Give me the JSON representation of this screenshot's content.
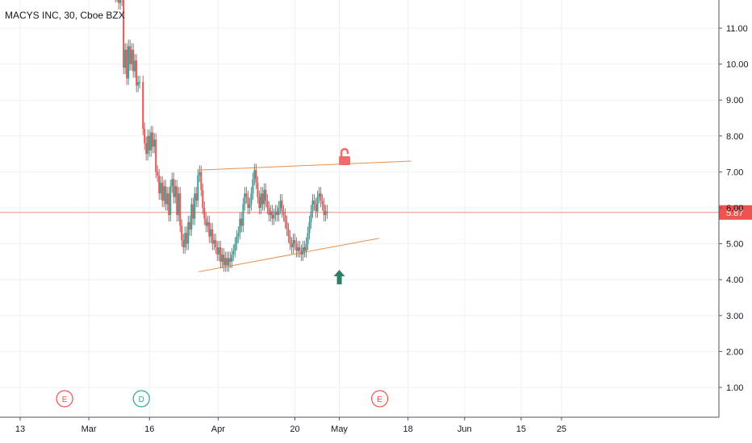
{
  "chart_data": {
    "type": "candlestick",
    "title": "MACYS INC, 30, Cboe BZX",
    "y_ticks": [
      "1.00",
      "2.00",
      "3.00",
      "4.00",
      "5.00",
      "6.00",
      "7.00",
      "8.00",
      "9.00",
      "10.00",
      "11.00"
    ],
    "ylim": [
      0.45,
      12.25
    ],
    "x_ticks": [
      {
        "label": "13",
        "t": 0
      },
      {
        "label": "Mar",
        "t": 17
      },
      {
        "label": "16",
        "t": 32
      },
      {
        "label": "Apr",
        "t": 49
      },
      {
        "label": "20",
        "t": 68
      },
      {
        "label": "May",
        "t": 79
      },
      {
        "label": "18",
        "t": 96
      },
      {
        "label": "Jun",
        "t": 110
      },
      {
        "label": "15",
        "t": 124
      },
      {
        "label": "25",
        "t": 134
      }
    ],
    "last_price": "5.87",
    "last_price_value": 5.87,
    "grid": true,
    "colors": {
      "up": "#26a69a",
      "down": "#ef5350",
      "trendline": "#e8904c",
      "price_line": "#f28b82",
      "earnings": "#ef5350",
      "dividend": "#26a69a",
      "arrow": "#2e7d66",
      "lock": "#f26b6b"
    },
    "trendlines": [
      {
        "name": "upper",
        "from": {
          "t": 44.2,
          "price": 7.05
        },
        "to": {
          "t": 96.8,
          "price": 7.3
        }
      },
      {
        "name": "lower",
        "from": {
          "t": 44.2,
          "price": 4.22
        },
        "to": {
          "t": 88.8,
          "price": 5.15
        }
      }
    ],
    "events": [
      {
        "label": "E",
        "t": 11,
        "kind": "earnings"
      },
      {
        "label": "D",
        "t": 30,
        "kind": "dividend"
      },
      {
        "label": "E",
        "t": 89,
        "kind": "earnings"
      }
    ],
    "markers": [
      {
        "kind": "up-arrow",
        "t": 79,
        "price": 4.05
      },
      {
        "kind": "unlock-icon",
        "t": 80.3,
        "price": 7.3
      }
    ],
    "price_path": [
      [
        23.2,
        12.2
      ],
      [
        23.6,
        11.9
      ],
      [
        24.0,
        12.0
      ],
      [
        24.4,
        11.7
      ],
      [
        24.8,
        12.1
      ],
      [
        25.2,
        11.8
      ],
      [
        25.6,
        9.9
      ],
      [
        26.0,
        10.4
      ],
      [
        26.4,
        9.6
      ],
      [
        26.8,
        10.5
      ],
      [
        27.2,
        10.0
      ],
      [
        27.6,
        10.4
      ],
      [
        28.0,
        9.8
      ],
      [
        28.4,
        10.1
      ],
      [
        28.8,
        9.4
      ],
      [
        29.2,
        9.5
      ],
      [
        29.6,
        9.5
      ],
      [
        30.4,
        8.2
      ],
      [
        30.8,
        7.8
      ],
      [
        31.2,
        7.5
      ],
      [
        31.6,
        8.0
      ],
      [
        32.0,
        7.6
      ],
      [
        32.4,
        8.1
      ],
      [
        32.8,
        7.7
      ],
      [
        33.2,
        7.9
      ],
      [
        33.6,
        7.0
      ],
      [
        34.0,
        6.9
      ],
      [
        34.4,
        6.4
      ],
      [
        34.8,
        6.7
      ],
      [
        35.2,
        6.2
      ],
      [
        35.6,
        6.6
      ],
      [
        36.0,
        6.1
      ],
      [
        36.4,
        6.4
      ],
      [
        36.8,
        5.8
      ],
      [
        37.2,
        6.6
      ],
      [
        37.6,
        6.8
      ],
      [
        38.0,
        6.3
      ],
      [
        38.4,
        6.6
      ],
      [
        38.8,
        5.8
      ],
      [
        39.2,
        6.4
      ],
      [
        39.6,
        5.5
      ],
      [
        40.0,
        5.1
      ],
      [
        40.4,
        4.9
      ],
      [
        40.8,
        5.3
      ],
      [
        41.2,
        5.0
      ],
      [
        41.6,
        5.6
      ],
      [
        42.0,
        5.4
      ],
      [
        42.4,
        6.1
      ],
      [
        42.8,
        5.7
      ],
      [
        43.2,
        6.4
      ],
      [
        43.6,
        6.2
      ],
      [
        44.0,
        6.9
      ],
      [
        44.4,
        7.0
      ],
      [
        44.8,
        6.5
      ],
      [
        45.2,
        6.0
      ],
      [
        45.6,
        5.7
      ],
      [
        46.0,
        5.5
      ],
      [
        46.4,
        5.6
      ],
      [
        46.8,
        5.2
      ],
      [
        47.2,
        5.4
      ],
      [
        47.6,
        5.0
      ],
      [
        48.0,
        5.1
      ],
      [
        48.4,
        4.9
      ],
      [
        48.8,
        4.7
      ],
      [
        49.2,
        4.9
      ],
      [
        49.6,
        4.5
      ],
      [
        50.0,
        4.7
      ],
      [
        50.4,
        4.4
      ],
      [
        50.8,
        4.6
      ],
      [
        51.2,
        4.4
      ],
      [
        51.6,
        4.6
      ],
      [
        52.0,
        4.5
      ],
      [
        52.4,
        4.7
      ],
      [
        52.8,
        4.8
      ],
      [
        53.2,
        5.0
      ],
      [
        53.6,
        5.2
      ],
      [
        54.0,
        5.3
      ],
      [
        54.4,
        5.7
      ],
      [
        54.8,
        5.5
      ],
      [
        55.2,
        6.1
      ],
      [
        55.6,
        6.4
      ],
      [
        56.0,
        6.3
      ],
      [
        56.4,
        6.0
      ],
      [
        56.8,
        6.1
      ],
      [
        57.2,
        6.4
      ],
      [
        57.6,
        6.8
      ],
      [
        58.0,
        7.05
      ],
      [
        58.4,
        6.7
      ],
      [
        58.8,
        6.3
      ],
      [
        59.2,
        6.0
      ],
      [
        59.6,
        6.4
      ],
      [
        60.0,
        6.1
      ],
      [
        60.4,
        6.5
      ],
      [
        60.8,
        6.2
      ],
      [
        61.2,
        6.0
      ],
      [
        61.6,
        5.8
      ],
      [
        62.0,
        5.9
      ],
      [
        62.4,
        5.7
      ],
      [
        62.8,
        5.8
      ],
      [
        63.2,
        5.9
      ],
      [
        63.6,
        5.8
      ],
      [
        64.0,
        6.0
      ],
      [
        64.4,
        6.2
      ],
      [
        64.8,
        5.9
      ],
      [
        65.2,
        5.8
      ],
      [
        65.6,
        5.6
      ],
      [
        66.0,
        5.4
      ],
      [
        66.4,
        5.2
      ],
      [
        66.8,
        5.0
      ],
      [
        67.2,
        4.9
      ],
      [
        67.6,
        5.1
      ],
      [
        68.0,
        5.0
      ],
      [
        68.4,
        4.8
      ],
      [
        68.8,
        4.9
      ],
      [
        69.2,
        4.8
      ],
      [
        69.6,
        4.7
      ],
      [
        70.0,
        4.9
      ],
      [
        70.4,
        4.8
      ],
      [
        70.8,
        5.0
      ],
      [
        71.2,
        5.3
      ],
      [
        71.6,
        5.6
      ],
      [
        72.0,
        5.9
      ],
      [
        72.4,
        6.2
      ],
      [
        72.8,
        6.1
      ],
      [
        73.2,
        5.9
      ],
      [
        73.6,
        6.3
      ],
      [
        74.0,
        6.4
      ],
      [
        74.4,
        6.2
      ],
      [
        74.8,
        6.1
      ],
      [
        75.2,
        5.8
      ],
      [
        75.6,
        5.9
      ],
      [
        76.0,
        5.87
      ]
    ]
  }
}
